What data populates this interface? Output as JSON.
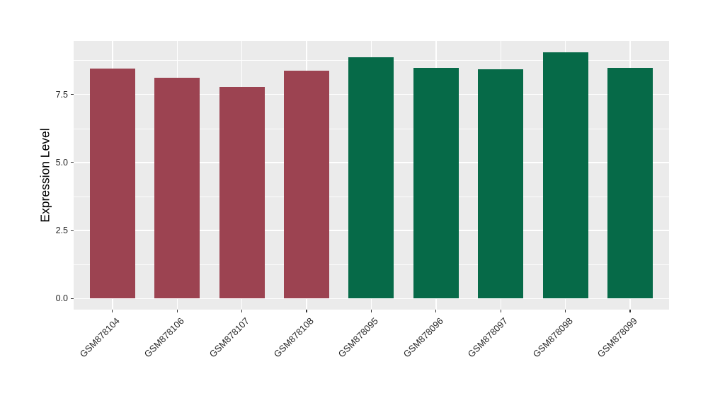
{
  "chart_data": {
    "type": "bar",
    "title": "",
    "xlabel": "",
    "ylabel": "Expression Level",
    "categories": [
      "GSM878104",
      "GSM878106",
      "GSM878107",
      "GSM878108",
      "GSM878095",
      "GSM878096",
      "GSM878097",
      "GSM878098",
      "GSM878099"
    ],
    "values": [
      8.45,
      8.1,
      7.78,
      8.38,
      8.85,
      8.48,
      8.42,
      9.05,
      8.48
    ],
    "bar_colors": [
      "#9C4351",
      "#9C4351",
      "#9C4351",
      "#9C4351",
      "#066A48",
      "#066A48",
      "#066A48",
      "#066A48",
      "#066A48"
    ],
    "group_colors": {
      "left_group": "#9C4351",
      "right_group": "#066A48"
    },
    "y_ticks": {
      "values": [
        0,
        2.5,
        5,
        7.5
      ],
      "labels": [
        "0.0",
        "2.5",
        "5.0",
        "7.5"
      ]
    },
    "y_minor_ticks": [
      1.25,
      3.75,
      6.25,
      8.75
    ],
    "ylim": [
      0,
      9.47
    ],
    "legend_position": "none",
    "grid": "white major and minor gridlines on gray panel",
    "panel_background": "#EBEBEB",
    "grid_color": "#FFFFFF",
    "tick_label_color": "#262626"
  }
}
